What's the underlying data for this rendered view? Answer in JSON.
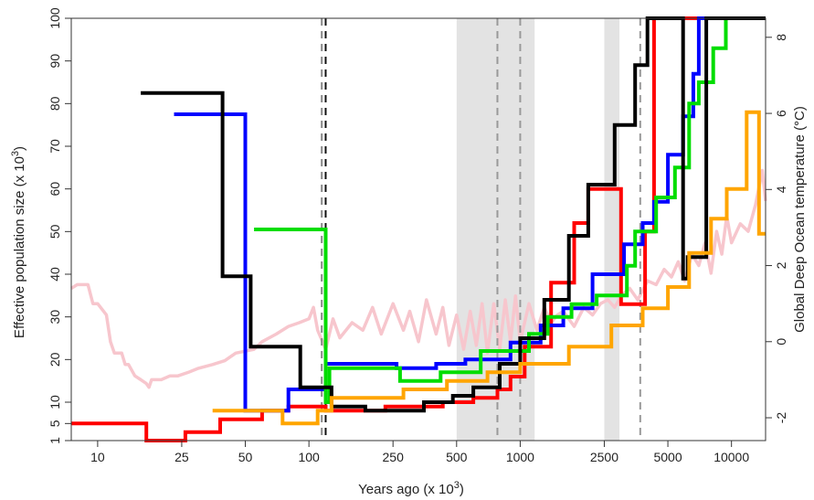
{
  "chart_data": {
    "type": "line",
    "title": "",
    "xlabel": "Years ago (x 10",
    "xlabel_sup": "3",
    "xlabel_close": ")",
    "ylabel": "Effective population size (x 10",
    "ylabel_sup": "3",
    "ylabel_close": ")",
    "y2label": "Global Deep Ocean temperature (°C)",
    "x_scale": "log",
    "xlim": [
      7.5,
      14500
    ],
    "ylim": [
      1,
      100
    ],
    "y2lim": [
      -2.6,
      8.5
    ],
    "x_ticks": [
      10,
      25,
      50,
      100,
      250,
      500,
      1000,
      2500,
      5000,
      10000
    ],
    "x_tick_labels": [
      "10",
      "25",
      "50",
      "100",
      "250",
      "500",
      "1000",
      "2500",
      "5000",
      "10000"
    ],
    "y_ticks": [
      1,
      5,
      10,
      20,
      30,
      40,
      50,
      60,
      70,
      80,
      90,
      100
    ],
    "y_tick_labels": [
      "1",
      "5",
      "10",
      "20",
      "30",
      "40",
      "50",
      "60",
      "70",
      "80",
      "90",
      "100"
    ],
    "y2_ticks": [
      -2,
      0,
      2,
      4,
      6,
      8
    ],
    "y2_tick_labels": [
      "-2",
      "0",
      "2",
      "4",
      "6",
      "8"
    ],
    "grid": false,
    "legend": "none",
    "shaded_bands": [
      [
        500,
        1170
      ],
      [
        2500,
        2950
      ]
    ],
    "vlines": [
      {
        "x": 115,
        "color": "#888888"
      },
      {
        "x": 120,
        "color": "#111111"
      },
      {
        "x": 780,
        "color": "#999999"
      },
      {
        "x": 1000,
        "color": "#999999"
      },
      {
        "x": 3700,
        "color": "#999999"
      }
    ],
    "series": [
      {
        "color": "#ff0000",
        "x": [
          7.5,
          17,
          17,
          26,
          26,
          38,
          38,
          60,
          60,
          80,
          80,
          120,
          120,
          230,
          230,
          430,
          430,
          600,
          600,
          780,
          780,
          900,
          900,
          1050,
          1050,
          1400,
          1400,
          1800,
          1800,
          2100,
          2100,
          3000,
          3000,
          3900,
          3900,
          4300,
          4300,
          14500
        ],
        "y": [
          5,
          5,
          1,
          1,
          3,
          3,
          6,
          6,
          8,
          8,
          9,
          9,
          8,
          8,
          9,
          9,
          10,
          10,
          11,
          11,
          13,
          13,
          16,
          16,
          23,
          23,
          38,
          38,
          52,
          52,
          60,
          60,
          33,
          33,
          50,
          50,
          100,
          100
        ]
      },
      {
        "color": "#0000ff",
        "x": [
          23,
          50,
          50,
          80,
          80,
          120,
          120,
          260,
          260,
          400,
          400,
          550,
          550,
          900,
          900,
          1250,
          1250,
          1600,
          1600,
          2200,
          2200,
          3100,
          3100,
          3800,
          3800,
          4300,
          4300,
          5000,
          5000,
          5900,
          5900,
          6600,
          6600,
          7000,
          7000,
          14500
        ],
        "y": [
          77.5,
          77.5,
          8,
          8,
          13,
          13,
          19,
          19,
          18,
          18,
          19,
          19,
          20,
          20,
          24,
          24,
          28,
          28,
          32,
          32,
          40,
          40,
          47,
          47,
          52,
          52,
          57,
          57,
          68,
          68,
          77,
          77,
          87,
          87,
          100,
          100
        ]
      },
      {
        "color": "#00dd00",
        "x": [
          55,
          120,
          120,
          125,
          125,
          270,
          270,
          420,
          420,
          650,
          650,
          1100,
          1100,
          1350,
          1350,
          1750,
          1750,
          2300,
          2300,
          3200,
          3200,
          3500,
          3500,
          4400,
          4400,
          5400,
          5400,
          6300,
          6300,
          7000,
          7000,
          8200,
          8200,
          9400,
          9400,
          14500
        ],
        "y": [
          50.5,
          50.5,
          10,
          10,
          18,
          18,
          15,
          15,
          17,
          17,
          22,
          22,
          26,
          26,
          30,
          30,
          33,
          33,
          35,
          35,
          42,
          42,
          50,
          50,
          58,
          58,
          65,
          65,
          80,
          80,
          85,
          85,
          93,
          93,
          100,
          100
        ]
      },
      {
        "color": "#000000",
        "x": [
          16,
          39,
          39,
          53,
          53,
          91,
          91,
          128,
          128,
          185,
          185,
          350,
          350,
          480,
          480,
          600,
          600,
          800,
          800,
          1000,
          1000,
          1300,
          1300,
          1700,
          1700,
          2100,
          2100,
          2800,
          2800,
          3500,
          3500,
          4000,
          4000,
          5900,
          5900,
          6200,
          6200,
          7600,
          7600,
          14500
        ],
        "y": [
          82.5,
          82.5,
          39.5,
          39.5,
          23,
          23,
          13.5,
          13.5,
          9,
          9,
          8,
          8,
          10,
          10,
          11.5,
          11.5,
          13.5,
          13.5,
          19,
          19,
          25,
          25,
          34,
          34,
          49,
          49,
          61,
          61,
          75,
          75,
          89,
          89,
          100,
          100,
          39,
          39,
          44,
          44,
          100,
          100
        ]
      },
      {
        "color": "#ffa500",
        "x": [
          35,
          75,
          75,
          110,
          110,
          128,
          128,
          280,
          280,
          450,
          450,
          700,
          700,
          1000,
          1000,
          1700,
          1700,
          2700,
          2700,
          3800,
          3800,
          5000,
          5000,
          6300,
          6300,
          8000,
          8000,
          9500,
          9500,
          11800,
          11800,
          13500,
          13500,
          14500
        ],
        "y": [
          8,
          8,
          5,
          5,
          8,
          8,
          11,
          11,
          13,
          13,
          15,
          15,
          17,
          17,
          19,
          19,
          23,
          23,
          28,
          28,
          32,
          32,
          37,
          37,
          45,
          45,
          53,
          53,
          60,
          60,
          78,
          78,
          49.5,
          49.5
        ]
      }
    ],
    "temperature_series": {
      "color": "#f7c6cd",
      "x": [
        7.5,
        8,
        9,
        9.5,
        10,
        11,
        11.5,
        12,
        13,
        13.5,
        14,
        15,
        16,
        17,
        17.5,
        18,
        19,
        20,
        22,
        24,
        27,
        30,
        35,
        40,
        45,
        55,
        60,
        70,
        80,
        90,
        100,
        105,
        110,
        120,
        130,
        140,
        160,
        180,
        200,
        220,
        250,
        280,
        300,
        330,
        360,
        400,
        430,
        460,
        500,
        540,
        580,
        620,
        660,
        700,
        750,
        800,
        850,
        900,
        950,
        1000,
        1100,
        1200,
        1300,
        1400,
        1500,
        1600,
        1800,
        2000,
        2200,
        2400,
        2600,
        2800,
        3000,
        3300,
        3600,
        4000,
        4400,
        4800,
        5200,
        5600,
        6000,
        6500,
        7000,
        7500,
        8000,
        8500,
        9000,
        9500,
        10000,
        11000,
        12000,
        13000,
        14000,
        14500
      ],
      "y": [
        1.4,
        1.5,
        1.5,
        1.0,
        1.0,
        0.7,
        0.0,
        -0.3,
        -0.3,
        -0.6,
        -0.6,
        -0.9,
        -1.0,
        -1.1,
        -1.2,
        -1.0,
        -1.0,
        -1.0,
        -0.9,
        -0.9,
        -0.8,
        -0.7,
        -0.6,
        -0.5,
        -0.3,
        -0.2,
        0.0,
        0.2,
        0.4,
        0.5,
        0.6,
        0.9,
        0.3,
        -0.2,
        0.6,
        0.1,
        0.5,
        0.3,
        0.9,
        0.2,
        1.0,
        0.3,
        0.8,
        0.0,
        1.1,
        0.2,
        0.9,
        -0.1,
        0.7,
        -0.2,
        0.8,
        -0.1,
        1.0,
        -0.3,
        1.0,
        -0.2,
        1.1,
        0.0,
        1.2,
        0.0,
        1.0,
        0.3,
        0.9,
        0.5,
        0.7,
        0.8,
        0.4,
        0.9,
        0.7,
        1.0,
        1.1,
        0.9,
        1.2,
        1.4,
        1.1,
        1.6,
        1.5,
        1.9,
        1.7,
        2.1,
        1.6,
        2.3,
        2.0,
        2.6,
        1.8,
        2.9,
        2.3,
        3.3,
        2.6,
        3.1,
        2.9,
        3.6,
        4.5,
        3.7
      ]
    }
  }
}
